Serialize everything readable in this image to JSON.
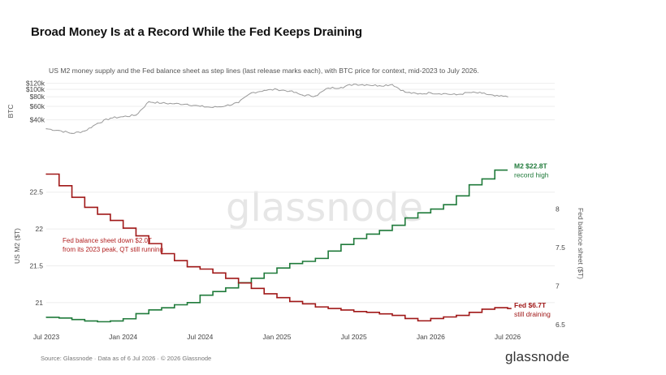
{
  "title": "Broad Money Is at a Record While the Fed Keeps Draining",
  "subtitle": "US M2 money supply and the Fed balance sheet as step lines (last release marks each), with BTC price for context, mid-2023 to July 2026.",
  "source": "Source: Glassnode · Data as of 6 Jul 2026 · © 2026 Glassnode",
  "brand": "glassnode",
  "watermark": "glassnode",
  "colors": {
    "m2": "#1f7a3a",
    "fed": "#a01818",
    "btc": "#9a9a9a",
    "grid": "#eeeeee"
  },
  "chart_data": [
    {
      "type": "line",
      "xlabel": "",
      "ylabel": "BTC",
      "scale": "log",
      "y_ticks": [
        40000,
        60000,
        80000,
        100000,
        120000
      ],
      "y_tick_labels": [
        "$40k",
        "$60k",
        "$80k",
        "$100k",
        "$120k"
      ],
      "x": [
        "2023-07",
        "2023-08",
        "2023-09",
        "2023-10",
        "2023-11",
        "2023-12",
        "2024-01",
        "2024-02",
        "2024-03",
        "2024-04",
        "2024-05",
        "2024-06",
        "2024-07",
        "2024-08",
        "2024-09",
        "2024-10",
        "2024-11",
        "2024-12",
        "2025-01",
        "2025-02",
        "2025-03",
        "2025-04",
        "2025-05",
        "2025-06",
        "2025-07",
        "2025-08",
        "2025-09",
        "2025-10",
        "2025-11",
        "2025-12",
        "2026-01",
        "2026-02",
        "2026-03",
        "2026-04",
        "2026-05",
        "2026-06",
        "2026-07"
      ],
      "values": [
        30500,
        29000,
        26500,
        28500,
        36000,
        42000,
        44000,
        46000,
        69000,
        66000,
        65000,
        64000,
        60000,
        58000,
        61000,
        67000,
        90000,
        97000,
        100000,
        95000,
        84000,
        82000,
        104000,
        106000,
        117000,
        115000,
        112000,
        116000,
        92000,
        87000,
        90000,
        88000,
        85000,
        91000,
        89000,
        82000,
        80000
      ]
    },
    {
      "type": "line",
      "step": true,
      "xlabel": "",
      "ylabel": "US M2 ($T)",
      "ylim": [
        20.7,
        22.85
      ],
      "y_ticks": [
        21,
        21.5,
        22,
        22.5
      ],
      "y_tick_labels": [
        "21",
        "21.5",
        "22",
        "22.5"
      ],
      "x_ticks": [
        "2023-07",
        "2024-01",
        "2024-07",
        "2025-01",
        "2025-07",
        "2026-01",
        "2026-07"
      ],
      "x_tick_labels": [
        "Jul 2023",
        "Jan 2024",
        "Jul 2024",
        "Jan 2025",
        "Jul 2025",
        "Jan 2026",
        "Jul 2026"
      ],
      "x": [
        "2023-07",
        "2023-08",
        "2023-09",
        "2023-10",
        "2023-11",
        "2023-12",
        "2024-01",
        "2024-02",
        "2024-03",
        "2024-04",
        "2024-05",
        "2024-06",
        "2024-07",
        "2024-08",
        "2024-09",
        "2024-10",
        "2024-11",
        "2024-12",
        "2025-01",
        "2025-02",
        "2025-03",
        "2025-04",
        "2025-05",
        "2025-06",
        "2025-07",
        "2025-08",
        "2025-09",
        "2025-10",
        "2025-11",
        "2025-12",
        "2026-01",
        "2026-02",
        "2026-03",
        "2026-04",
        "2026-05",
        "2026-06"
      ],
      "values": [
        20.8,
        20.79,
        20.77,
        20.75,
        20.74,
        20.75,
        20.78,
        20.85,
        20.9,
        20.93,
        20.97,
        21.0,
        21.1,
        21.15,
        21.2,
        21.27,
        21.33,
        21.4,
        21.47,
        21.53,
        21.56,
        21.6,
        21.7,
        21.79,
        21.87,
        21.93,
        21.98,
        22.05,
        22.15,
        22.22,
        22.27,
        22.33,
        22.45,
        22.6,
        22.68,
        22.8
      ],
      "end_label": "M2 $22.8T",
      "end_note": "record high"
    },
    {
      "type": "line",
      "step": true,
      "ylabel": "Fed balance sheet ($T)",
      "ylim": [
        6.5,
        8.55
      ],
      "y_ticks": [
        6.5,
        7,
        7.5,
        8
      ],
      "y_tick_labels": [
        "6.5",
        "7",
        "7.5",
        "8"
      ],
      "x": [
        "2023-07",
        "2023-08",
        "2023-09",
        "2023-10",
        "2023-11",
        "2023-12",
        "2024-01",
        "2024-02",
        "2024-03",
        "2024-04",
        "2024-05",
        "2024-06",
        "2024-07",
        "2024-08",
        "2024-09",
        "2024-10",
        "2024-11",
        "2024-12",
        "2025-01",
        "2025-02",
        "2025-03",
        "2025-04",
        "2025-05",
        "2025-06",
        "2025-07",
        "2025-08",
        "2025-09",
        "2025-10",
        "2025-11",
        "2025-12",
        "2026-01",
        "2026-02",
        "2026-03",
        "2026-04",
        "2026-05",
        "2026-06",
        "2026-07"
      ],
      "values": [
        8.45,
        8.3,
        8.15,
        8.02,
        7.93,
        7.85,
        7.75,
        7.65,
        7.55,
        7.42,
        7.33,
        7.25,
        7.22,
        7.17,
        7.1,
        7.04,
        6.97,
        6.9,
        6.85,
        6.8,
        6.77,
        6.73,
        6.71,
        6.69,
        6.67,
        6.66,
        6.64,
        6.62,
        6.58,
        6.55,
        6.58,
        6.6,
        6.62,
        6.66,
        6.7,
        6.72,
        6.71
      ],
      "end_label": "Fed $6.7T",
      "end_note": "still draining",
      "annotation": [
        "Fed balance sheet down $2.0T",
        "from its 2023 peak, QT still running"
      ]
    }
  ]
}
